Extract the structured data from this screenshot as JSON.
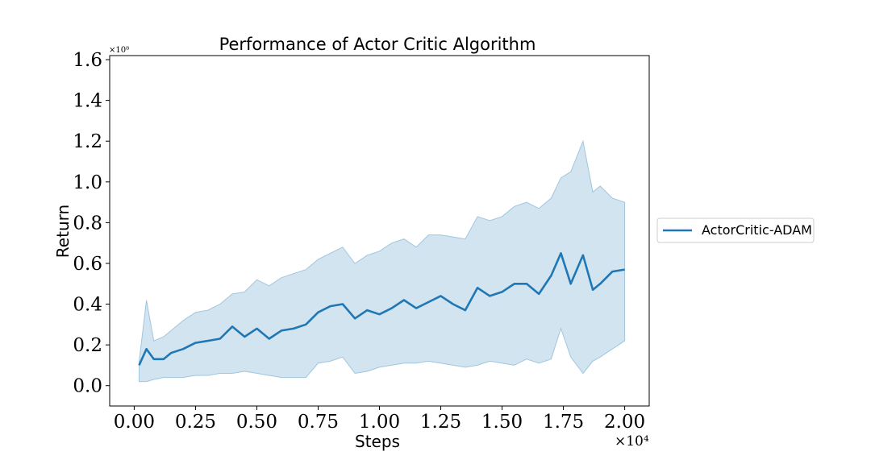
{
  "chart_data": {
    "type": "line",
    "title": "Performance of Actor Critic Algorithm",
    "xlabel": "Steps",
    "ylabel": "Return",
    "x_offset_label": "×10⁴",
    "y_offset_label": "×10⁸",
    "xlim": [
      -0.1,
      2.1
    ],
    "ylim": [
      -0.1,
      1.62
    ],
    "xticks": [
      0.0,
      0.25,
      0.5,
      0.75,
      1.0,
      1.25,
      1.5,
      1.75,
      2.0
    ],
    "xtick_labels": [
      "0.00",
      "0.25",
      "0.50",
      "0.75",
      "1.00",
      "1.25",
      "1.50",
      "1.75",
      "2.00"
    ],
    "yticks": [
      0.0,
      0.2,
      0.4,
      0.6,
      0.8,
      1.0,
      1.2,
      1.4,
      1.6
    ],
    "ytick_labels": [
      "0.0",
      "0.2",
      "0.4",
      "0.6",
      "0.8",
      "1.0",
      "1.2",
      "1.4",
      "1.6"
    ],
    "grid": false,
    "legend_position": "outside-right",
    "colors": {
      "line": "#1f77b4",
      "band": "#1f77b4",
      "band_opacity": 0.2
    },
    "series": [
      {
        "name": "ActorCritic-ADAM",
        "x": [
          0.02,
          0.05,
          0.08,
          0.12,
          0.15,
          0.2,
          0.25,
          0.3,
          0.35,
          0.4,
          0.45,
          0.5,
          0.55,
          0.6,
          0.65,
          0.7,
          0.75,
          0.8,
          0.85,
          0.9,
          0.95,
          1.0,
          1.05,
          1.1,
          1.15,
          1.2,
          1.25,
          1.3,
          1.35,
          1.4,
          1.45,
          1.5,
          1.55,
          1.6,
          1.65,
          1.7,
          1.74,
          1.78,
          1.83,
          1.87,
          1.9,
          1.95,
          2.0
        ],
        "y": [
          0.1,
          0.18,
          0.13,
          0.13,
          0.16,
          0.18,
          0.21,
          0.22,
          0.23,
          0.29,
          0.24,
          0.28,
          0.23,
          0.27,
          0.28,
          0.3,
          0.36,
          0.39,
          0.4,
          0.33,
          0.37,
          0.35,
          0.38,
          0.42,
          0.38,
          0.41,
          0.44,
          0.4,
          0.37,
          0.48,
          0.44,
          0.46,
          0.5,
          0.5,
          0.45,
          0.54,
          0.65,
          0.5,
          0.64,
          0.47,
          0.5,
          0.56,
          0.57
        ],
        "lower": [
          0.02,
          0.02,
          0.03,
          0.04,
          0.04,
          0.04,
          0.05,
          0.05,
          0.06,
          0.06,
          0.07,
          0.06,
          0.05,
          0.04,
          0.04,
          0.04,
          0.11,
          0.12,
          0.14,
          0.06,
          0.07,
          0.09,
          0.1,
          0.11,
          0.11,
          0.12,
          0.11,
          0.1,
          0.09,
          0.1,
          0.12,
          0.11,
          0.1,
          0.13,
          0.11,
          0.13,
          0.28,
          0.14,
          0.06,
          0.12,
          0.14,
          0.18,
          0.22
        ],
        "upper": [
          0.12,
          0.42,
          0.22,
          0.24,
          0.27,
          0.32,
          0.36,
          0.37,
          0.4,
          0.45,
          0.46,
          0.52,
          0.49,
          0.53,
          0.55,
          0.57,
          0.62,
          0.65,
          0.68,
          0.6,
          0.64,
          0.66,
          0.7,
          0.72,
          0.68,
          0.74,
          0.74,
          0.73,
          0.72,
          0.83,
          0.81,
          0.83,
          0.88,
          0.9,
          0.87,
          0.92,
          1.02,
          1.05,
          1.2,
          0.95,
          0.98,
          0.92,
          0.9
        ]
      }
    ]
  }
}
